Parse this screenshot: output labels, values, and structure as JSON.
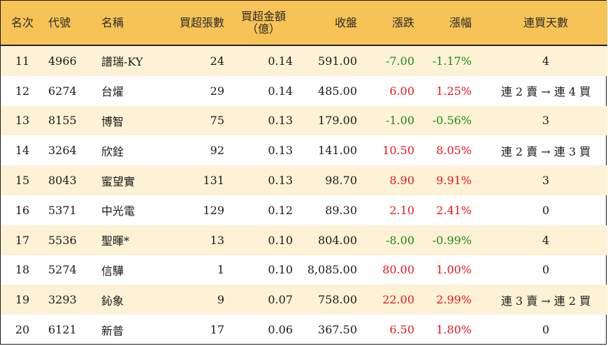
{
  "headers": {
    "rank": "名次",
    "code": "代號",
    "name": "名稱",
    "lots": "買超張數",
    "amount_line1": "買超金額",
    "amount_line2": "（億）",
    "close": "收盤",
    "change": "漲跌",
    "pct": "漲幅",
    "streak": "連買天數"
  },
  "colors": {
    "header_bg": "#f7c356",
    "alt_row_bg": "#fdf2d6",
    "up": "#e8141f",
    "down": "#1b8a1b"
  },
  "rows": [
    {
      "rank": "11",
      "code": "4966",
      "name": "譜瑞-KY",
      "lots": "24",
      "amount": "0.14",
      "close": "591.00",
      "change": "-7.00",
      "pct": "-1.17%",
      "streak": "4",
      "dir": "down"
    },
    {
      "rank": "12",
      "code": "6274",
      "name": "台燿",
      "lots": "29",
      "amount": "0.14",
      "close": "485.00",
      "change": "6.00",
      "pct": "1.25%",
      "streak": "連 2 賣 → 連 4 買",
      "dir": "up"
    },
    {
      "rank": "13",
      "code": "8155",
      "name": "博智",
      "lots": "75",
      "amount": "0.13",
      "close": "179.00",
      "change": "-1.00",
      "pct": "-0.56%",
      "streak": "3",
      "dir": "down"
    },
    {
      "rank": "14",
      "code": "3264",
      "name": "欣銓",
      "lots": "92",
      "amount": "0.13",
      "close": "141.00",
      "change": "10.50",
      "pct": "8.05%",
      "streak": "連 2 賣 → 連 3 買",
      "dir": "up"
    },
    {
      "rank": "15",
      "code": "8043",
      "name": "蜜望實",
      "lots": "131",
      "amount": "0.13",
      "close": "98.70",
      "change": "8.90",
      "pct": "9.91%",
      "streak": "3",
      "dir": "up"
    },
    {
      "rank": "16",
      "code": "5371",
      "name": "中光電",
      "lots": "129",
      "amount": "0.12",
      "close": "89.30",
      "change": "2.10",
      "pct": "2.41%",
      "streak": "0",
      "dir": "up"
    },
    {
      "rank": "17",
      "code": "5536",
      "name": "聖暉*",
      "lots": "13",
      "amount": "0.10",
      "close": "804.00",
      "change": "-8.00",
      "pct": "-0.99%",
      "streak": "4",
      "dir": "down"
    },
    {
      "rank": "18",
      "code": "5274",
      "name": "信驊",
      "lots": "1",
      "amount": "0.10",
      "close": "8,085.00",
      "change": "80.00",
      "pct": "1.00%",
      "streak": "0",
      "dir": "up"
    },
    {
      "rank": "19",
      "code": "3293",
      "name": "鈊象",
      "lots": "9",
      "amount": "0.07",
      "close": "758.00",
      "change": "22.00",
      "pct": "2.99%",
      "streak": "連 3 賣 → 連 2 買",
      "dir": "up"
    },
    {
      "rank": "20",
      "code": "6121",
      "name": "新普",
      "lots": "17",
      "amount": "0.06",
      "close": "367.50",
      "change": "6.50",
      "pct": "1.80%",
      "streak": "0",
      "dir": "up"
    }
  ]
}
